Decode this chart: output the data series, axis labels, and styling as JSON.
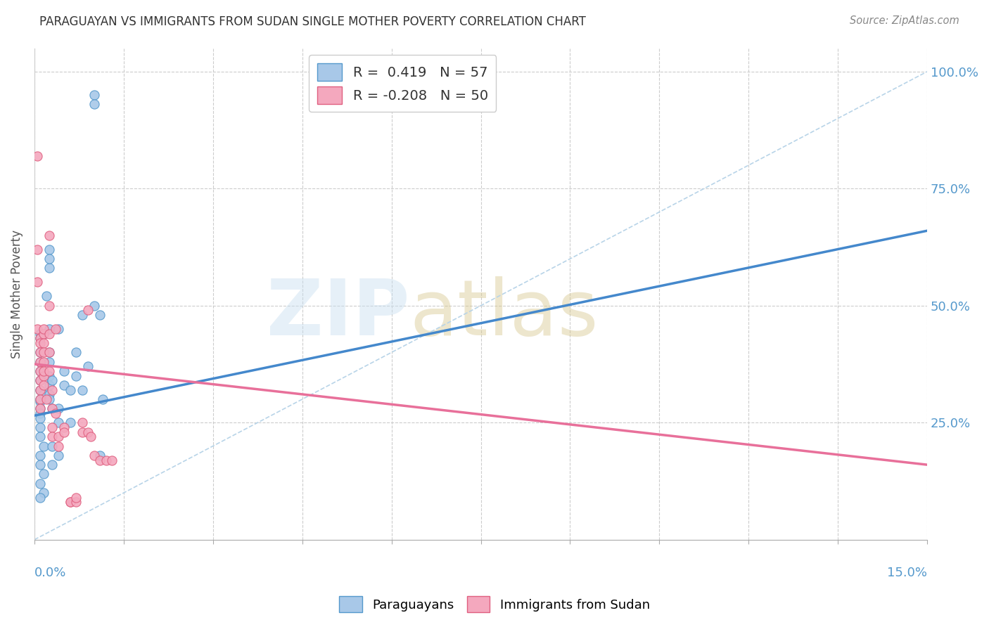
{
  "title": "PARAGUAYAN VS IMMIGRANTS FROM SUDAN SINGLE MOTHER POVERTY CORRELATION CHART",
  "source": "Source: ZipAtlas.com",
  "ylabel": "Single Mother Poverty",
  "legend_blue_label": "R =  0.419   N = 57",
  "legend_pink_label": "R = -0.208   N = 50",
  "legend_bottom_blue": "Paraguayans",
  "legend_bottom_pink": "Immigrants from Sudan",
  "blue_color": "#a8c8e8",
  "pink_color": "#f4a8be",
  "blue_edge_color": "#5599cc",
  "pink_edge_color": "#e06080",
  "blue_line_color": "#4488cc",
  "pink_line_color": "#e8709a",
  "dashed_line_color": "#b8d4e8",
  "title_color": "#333333",
  "source_color": "#888888",
  "right_axis_color": "#5599cc",
  "blue_scatter": [
    [
      0.001,
      0.295
    ],
    [
      0.001,
      0.34
    ],
    [
      0.002,
      0.52
    ],
    [
      0.001,
      0.44
    ],
    [
      0.001,
      0.43
    ],
    [
      0.0015,
      0.44
    ],
    [
      0.001,
      0.4
    ],
    [
      0.001,
      0.38
    ],
    [
      0.001,
      0.36
    ],
    [
      0.001,
      0.32
    ],
    [
      0.001,
      0.3
    ],
    [
      0.001,
      0.28
    ],
    [
      0.001,
      0.27
    ],
    [
      0.0015,
      0.31
    ],
    [
      0.001,
      0.26
    ],
    [
      0.001,
      0.24
    ],
    [
      0.001,
      0.22
    ],
    [
      0.0015,
      0.2
    ],
    [
      0.001,
      0.18
    ],
    [
      0.001,
      0.16
    ],
    [
      0.0015,
      0.14
    ],
    [
      0.001,
      0.12
    ],
    [
      0.0015,
      0.1
    ],
    [
      0.001,
      0.09
    ],
    [
      0.0025,
      0.31
    ],
    [
      0.0025,
      0.3
    ],
    [
      0.0025,
      0.35
    ],
    [
      0.0025,
      0.33
    ],
    [
      0.0025,
      0.4
    ],
    [
      0.0025,
      0.38
    ],
    [
      0.0025,
      0.45
    ],
    [
      0.0025,
      0.58
    ],
    [
      0.0025,
      0.62
    ],
    [
      0.0025,
      0.6
    ],
    [
      0.003,
      0.34
    ],
    [
      0.003,
      0.28
    ],
    [
      0.003,
      0.2
    ],
    [
      0.003,
      0.16
    ],
    [
      0.004,
      0.28
    ],
    [
      0.004,
      0.45
    ],
    [
      0.004,
      0.25
    ],
    [
      0.004,
      0.18
    ],
    [
      0.005,
      0.36
    ],
    [
      0.005,
      0.33
    ],
    [
      0.006,
      0.25
    ],
    [
      0.007,
      0.4
    ],
    [
      0.007,
      0.35
    ],
    [
      0.006,
      0.32
    ],
    [
      0.008,
      0.48
    ],
    [
      0.008,
      0.32
    ],
    [
      0.009,
      0.37
    ],
    [
      0.01,
      0.5
    ],
    [
      0.01,
      0.95
    ],
    [
      0.01,
      0.93
    ],
    [
      0.011,
      0.48
    ],
    [
      0.011,
      0.18
    ],
    [
      0.0115,
      0.3
    ]
  ],
  "pink_scatter": [
    [
      0.0005,
      0.82
    ],
    [
      0.0005,
      0.55
    ],
    [
      0.0005,
      0.62
    ],
    [
      0.0005,
      0.45
    ],
    [
      0.001,
      0.43
    ],
    [
      0.001,
      0.42
    ],
    [
      0.001,
      0.4
    ],
    [
      0.001,
      0.38
    ],
    [
      0.001,
      0.36
    ],
    [
      0.001,
      0.34
    ],
    [
      0.001,
      0.32
    ],
    [
      0.001,
      0.3
    ],
    [
      0.001,
      0.28
    ],
    [
      0.0015,
      0.35
    ],
    [
      0.0015,
      0.44
    ],
    [
      0.0015,
      0.42
    ],
    [
      0.0015,
      0.45
    ],
    [
      0.0015,
      0.4
    ],
    [
      0.0015,
      0.38
    ],
    [
      0.0015,
      0.36
    ],
    [
      0.0015,
      0.33
    ],
    [
      0.002,
      0.3
    ],
    [
      0.0025,
      0.65
    ],
    [
      0.0025,
      0.5
    ],
    [
      0.0025,
      0.44
    ],
    [
      0.0025,
      0.4
    ],
    [
      0.0025,
      0.36
    ],
    [
      0.003,
      0.32
    ],
    [
      0.003,
      0.28
    ],
    [
      0.003,
      0.24
    ],
    [
      0.003,
      0.22
    ],
    [
      0.0035,
      0.45
    ],
    [
      0.0035,
      0.27
    ],
    [
      0.004,
      0.22
    ],
    [
      0.004,
      0.2
    ],
    [
      0.005,
      0.24
    ],
    [
      0.005,
      0.23
    ],
    [
      0.006,
      0.08
    ],
    [
      0.006,
      0.08
    ],
    [
      0.007,
      0.08
    ],
    [
      0.007,
      0.09
    ],
    [
      0.008,
      0.25
    ],
    [
      0.008,
      0.23
    ],
    [
      0.009,
      0.49
    ],
    [
      0.009,
      0.23
    ],
    [
      0.0095,
      0.22
    ],
    [
      0.01,
      0.18
    ],
    [
      0.011,
      0.17
    ],
    [
      0.012,
      0.17
    ],
    [
      0.013,
      0.17
    ]
  ],
  "blue_line_x": [
    0.0,
    0.15
  ],
  "blue_line_y": [
    0.265,
    0.66
  ],
  "pink_line_x": [
    0.0,
    0.15
  ],
  "pink_line_y": [
    0.375,
    0.16
  ],
  "dashed_line_x": [
    0.0,
    0.15
  ],
  "dashed_line_y": [
    0.0,
    1.0
  ],
  "xlim": [
    0.0,
    0.15
  ],
  "ylim": [
    0.0,
    1.05
  ],
  "x_ticks": [
    0.0,
    0.015,
    0.03,
    0.045,
    0.06,
    0.075,
    0.09,
    0.105,
    0.12,
    0.135,
    0.15
  ],
  "y_ticks": [
    0.0,
    0.25,
    0.5,
    0.75,
    1.0
  ]
}
